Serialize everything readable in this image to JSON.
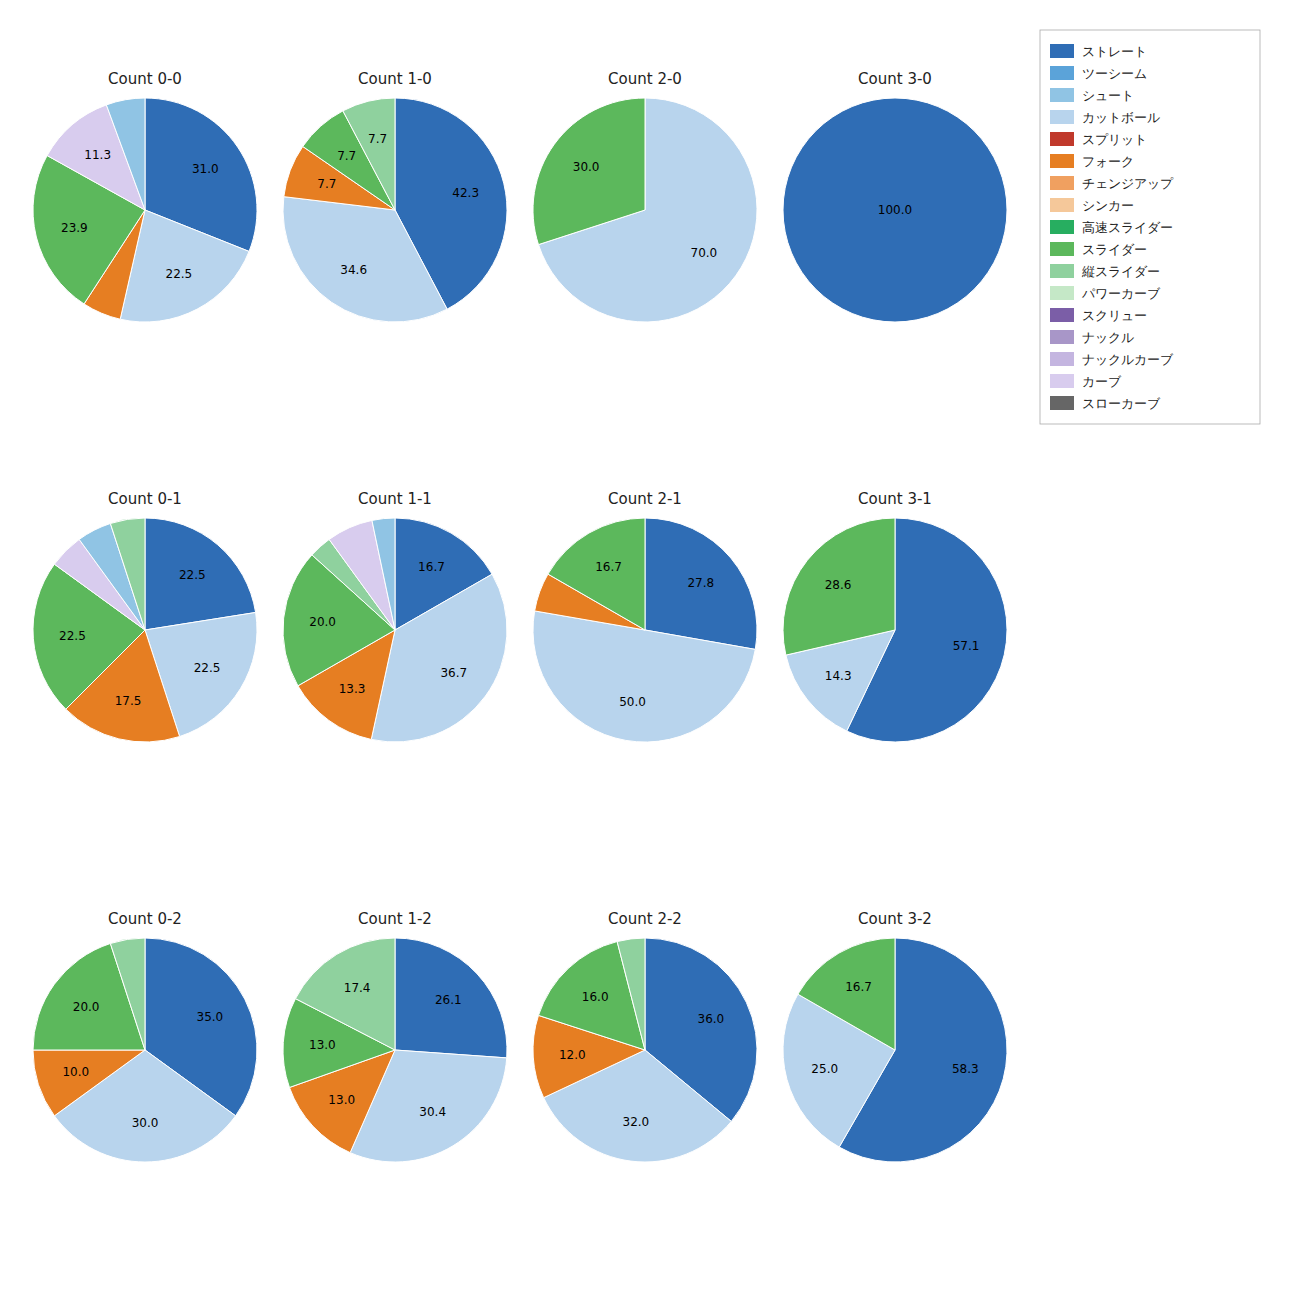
{
  "chart_data": [
    {
      "type": "pie",
      "title": "Count 0-0",
      "categories": [
        "ストレート",
        "カットボール",
        "フォーク",
        "スライダー",
        "カーブ",
        "シュート"
      ],
      "values": [
        31.0,
        22.5,
        5.6,
        23.9,
        11.3,
        5.6
      ],
      "value_labels": [
        "31.0",
        "22.5",
        null,
        "23.9",
        "11.3",
        null
      ],
      "colors": [
        "#2f6db5",
        "#b8d4ed",
        "#e67e22",
        "#5cb85c",
        "#d8ccee",
        "#90c4e4"
      ],
      "data_labels": true
    },
    {
      "type": "pie",
      "title": "Count 1-0",
      "categories": [
        "ストレート",
        "カットボール",
        "フォーク",
        "スライダー",
        "縦スライダー"
      ],
      "values": [
        42.3,
        34.6,
        7.7,
        7.7,
        7.7
      ],
      "value_labels": [
        "42.3",
        "34.6",
        "7.7",
        "7.7",
        "7.7"
      ],
      "colors": [
        "#2f6db5",
        "#b8d4ed",
        "#e67e22",
        "#5cb85c",
        "#8fd19e"
      ],
      "data_labels": true
    },
    {
      "type": "pie",
      "title": "Count 2-0",
      "categories": [
        "カットボール",
        "スライダー"
      ],
      "values": [
        70.0,
        30.0
      ],
      "value_labels": [
        "70.0",
        "30.0"
      ],
      "colors": [
        "#b8d4ed",
        "#5cb85c"
      ],
      "data_labels": true
    },
    {
      "type": "pie",
      "title": "Count 3-0",
      "categories": [
        "ストレート"
      ],
      "values": [
        100.0
      ],
      "value_labels": [
        "100.0"
      ],
      "colors": [
        "#2f6db5"
      ],
      "data_labels": true
    },
    {
      "type": "pie",
      "title": "Count 0-1",
      "categories": [
        "ストレート",
        "カットボール",
        "フォーク",
        "スライダー",
        "カーブ",
        "シュート",
        "縦スライダー"
      ],
      "values": [
        22.5,
        22.5,
        17.5,
        22.5,
        5.0,
        5.0,
        5.0
      ],
      "value_labels": [
        "22.5",
        "22.5",
        "17.5",
        "22.5",
        null,
        null,
        null
      ],
      "colors": [
        "#2f6db5",
        "#b8d4ed",
        "#e67e22",
        "#5cb85c",
        "#d8ccee",
        "#90c4e4",
        "#8fd19e"
      ],
      "data_labels": true
    },
    {
      "type": "pie",
      "title": "Count 1-1",
      "categories": [
        "ストレート",
        "カットボール",
        "フォーク",
        "スライダー",
        "縦スライダー",
        "カーブ",
        "シュート"
      ],
      "values": [
        16.7,
        36.7,
        13.3,
        20.0,
        3.3,
        6.7,
        3.3
      ],
      "value_labels": [
        "16.7",
        "36.7",
        "13.3",
        "20.0",
        null,
        null,
        null
      ],
      "colors": [
        "#2f6db5",
        "#b8d4ed",
        "#e67e22",
        "#5cb85c",
        "#8fd19e",
        "#d8ccee",
        "#90c4e4"
      ],
      "data_labels": true
    },
    {
      "type": "pie",
      "title": "Count 2-1",
      "categories": [
        "ストレート",
        "カットボール",
        "フォーク",
        "スライダー"
      ],
      "values": [
        27.8,
        50.0,
        5.6,
        16.7
      ],
      "value_labels": [
        "27.8",
        "50.0",
        null,
        "16.7"
      ],
      "colors": [
        "#2f6db5",
        "#b8d4ed",
        "#e67e22",
        "#5cb85c"
      ],
      "data_labels": true
    },
    {
      "type": "pie",
      "title": "Count 3-1",
      "categories": [
        "ストレート",
        "カットボール",
        "スライダー"
      ],
      "values": [
        57.1,
        14.3,
        28.6
      ],
      "value_labels": [
        "57.1",
        "14.3",
        "28.6"
      ],
      "colors": [
        "#2f6db5",
        "#b8d4ed",
        "#5cb85c"
      ],
      "data_labels": true
    },
    {
      "type": "pie",
      "title": "Count 0-2",
      "categories": [
        "ストレート",
        "カットボール",
        "フォーク",
        "スライダー",
        "縦スライダー"
      ],
      "values": [
        35.0,
        30.0,
        10.0,
        20.0,
        5.0
      ],
      "value_labels": [
        "35.0",
        "30.0",
        "10.0",
        "20.0",
        null
      ],
      "colors": [
        "#2f6db5",
        "#b8d4ed",
        "#e67e22",
        "#5cb85c",
        "#8fd19e"
      ],
      "data_labels": true
    },
    {
      "type": "pie",
      "title": "Count 1-2",
      "categories": [
        "ストレート",
        "カットボール",
        "フォーク",
        "スライダー",
        "縦スライダー"
      ],
      "values": [
        26.1,
        30.4,
        13.0,
        13.0,
        17.4
      ],
      "value_labels": [
        "26.1",
        "30.4",
        "13.0",
        "13.0",
        "17.4"
      ],
      "colors": [
        "#2f6db5",
        "#b8d4ed",
        "#e67e22",
        "#5cb85c",
        "#8fd19e"
      ],
      "data_labels": true
    },
    {
      "type": "pie",
      "title": "Count 2-2",
      "categories": [
        "ストレート",
        "カットボール",
        "フォーク",
        "スライダー",
        "縦スライダー"
      ],
      "values": [
        36.0,
        32.0,
        12.0,
        16.0,
        4.0
      ],
      "value_labels": [
        "36.0",
        "32.0",
        "12.0",
        "16.0",
        null
      ],
      "colors": [
        "#2f6db5",
        "#b8d4ed",
        "#e67e22",
        "#5cb85c",
        "#8fd19e"
      ],
      "data_labels": true
    },
    {
      "type": "pie",
      "title": "Count 3-2",
      "categories": [
        "ストレート",
        "カットボール",
        "スライダー"
      ],
      "values": [
        58.3,
        25.0,
        16.7
      ],
      "value_labels": [
        "58.3",
        "25.0",
        "16.7"
      ],
      "colors": [
        "#2f6db5",
        "#b8d4ed",
        "#5cb85c"
      ],
      "data_labels": true
    },
    {
      "type": "legend",
      "series": [
        {
          "name": "ストレート",
          "color": "#2f6db5"
        },
        {
          "name": "ツーシーム",
          "color": "#5ba3d9"
        },
        {
          "name": "シュート",
          "color": "#90c4e4"
        },
        {
          "name": "カットボール",
          "color": "#b8d4ed"
        },
        {
          "name": "スプリット",
          "color": "#c0392b"
        },
        {
          "name": "フォーク",
          "color": "#e67e22"
        },
        {
          "name": "チェンジアップ",
          "color": "#f0a060"
        },
        {
          "name": "シンカー",
          "color": "#f5c89a"
        },
        {
          "name": "高速スライダー",
          "color": "#27ae60"
        },
        {
          "name": "スライダー",
          "color": "#5cb85c"
        },
        {
          "name": "縦スライダー",
          "color": "#8fd19e"
        },
        {
          "name": "パワーカーブ",
          "color": "#c5e8c7"
        },
        {
          "name": "スクリュー",
          "color": "#7b5ea7"
        },
        {
          "name": "ナックル",
          "color": "#a896c8"
        },
        {
          "name": "ナックルカーブ",
          "color": "#c4b5e0"
        },
        {
          "name": "カーブ",
          "color": "#d8ccee"
        },
        {
          "name": "スローカーブ",
          "color": "#666666"
        }
      ]
    }
  ]
}
